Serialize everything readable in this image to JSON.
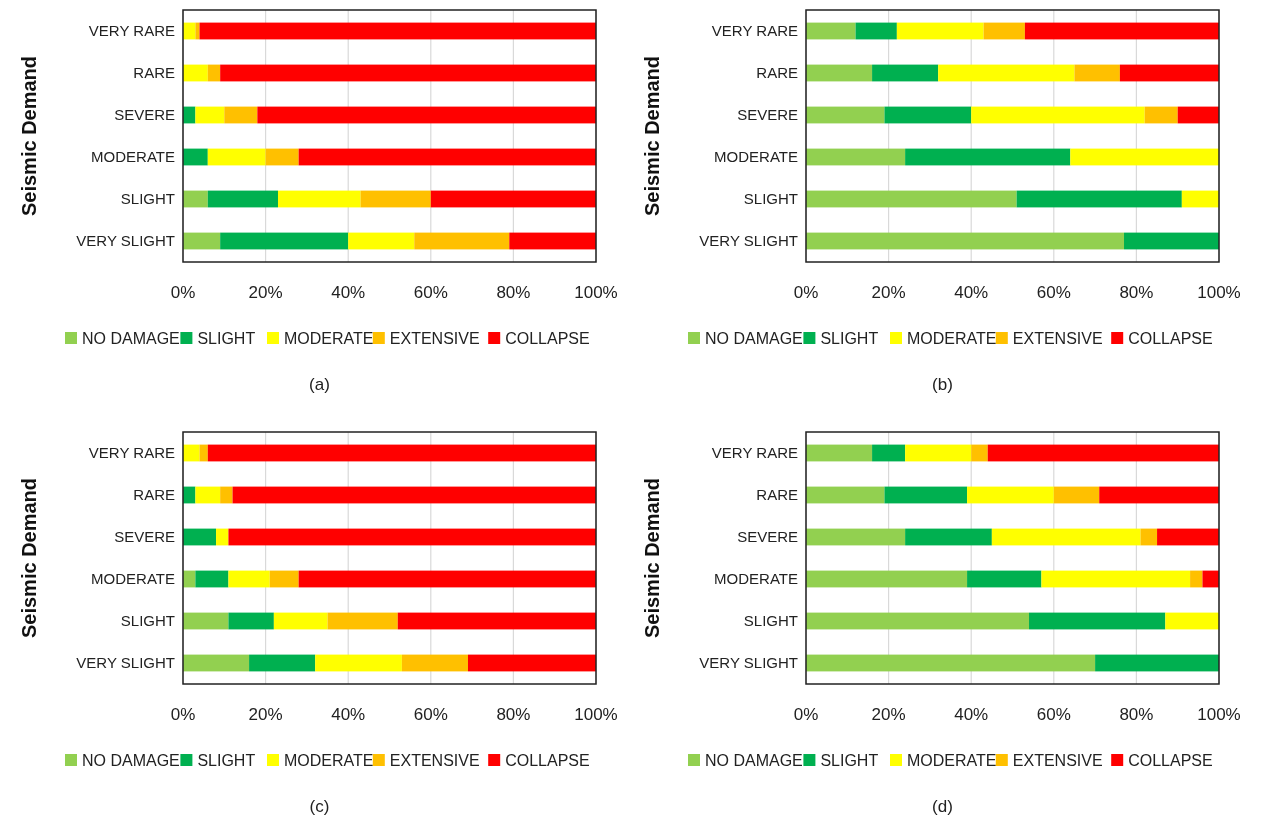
{
  "chart_data": [
    {
      "type": "bar",
      "orientation": "horizontal",
      "stacked": true,
      "ylabel": "Seismic Demand",
      "categories": [
        "VERY RARE",
        "RARE",
        "SEVERE",
        "MODERATE",
        "SLIGHT",
        "VERY SLIGHT"
      ],
      "xlim": [
        0,
        100
      ],
      "xticks": [
        {
          "value": 0,
          "label": "0%"
        },
        {
          "value": 20,
          "label": "20%"
        },
        {
          "value": 40,
          "label": "40%"
        },
        {
          "value": 60,
          "label": "60%"
        },
        {
          "value": 80,
          "label": "80%"
        },
        {
          "value": 100,
          "label": "100%"
        }
      ],
      "grid": "x",
      "legend": "bottom",
      "annotations": [
        "(a)"
      ],
      "series": [
        {
          "name": "NO DAMAGE",
          "color": "#92d050",
          "values": [
            0,
            0,
            0,
            0,
            6,
            9
          ]
        },
        {
          "name": "SLIGHT",
          "color": "#00b050",
          "values": [
            0,
            0,
            3,
            6,
            17,
            31
          ]
        },
        {
          "name": "MODERATE",
          "color": "#ffff00",
          "values": [
            3,
            6,
            7,
            14,
            20,
            16
          ]
        },
        {
          "name": "EXTENSIVE",
          "color": "#ffc000",
          "values": [
            1,
            3,
            8,
            8,
            17,
            23
          ]
        },
        {
          "name": "COLLAPSE",
          "color": "#ff0000",
          "values": [
            96,
            91,
            82,
            72,
            40,
            21
          ]
        }
      ]
    },
    {
      "type": "bar",
      "orientation": "horizontal",
      "stacked": true,
      "ylabel": "Seismic Demand",
      "categories": [
        "VERY RARE",
        "RARE",
        "SEVERE",
        "MODERATE",
        "SLIGHT",
        "VERY SLIGHT"
      ],
      "xlim": [
        0,
        100
      ],
      "xticks": [
        {
          "value": 0,
          "label": "0%"
        },
        {
          "value": 20,
          "label": "20%"
        },
        {
          "value": 40,
          "label": "40%"
        },
        {
          "value": 60,
          "label": "60%"
        },
        {
          "value": 80,
          "label": "80%"
        },
        {
          "value": 100,
          "label": "100%"
        }
      ],
      "grid": "x",
      "legend": "bottom",
      "annotations": [
        "(b)"
      ],
      "series": [
        {
          "name": "NO DAMAGE",
          "color": "#92d050",
          "values": [
            12,
            16,
            19,
            24,
            51,
            77
          ]
        },
        {
          "name": "SLIGHT",
          "color": "#00b050",
          "values": [
            10,
            16,
            21,
            40,
            40,
            23
          ]
        },
        {
          "name": "MODERATE",
          "color": "#ffff00",
          "values": [
            21,
            33,
            42,
            36,
            9,
            0
          ]
        },
        {
          "name": "EXTENSIVE",
          "color": "#ffc000",
          "values": [
            10,
            11,
            8,
            0,
            0,
            0
          ]
        },
        {
          "name": "COLLAPSE",
          "color": "#ff0000",
          "values": [
            47,
            24,
            10,
            0,
            0,
            0
          ]
        }
      ]
    },
    {
      "type": "bar",
      "orientation": "horizontal",
      "stacked": true,
      "ylabel": "Seismic Demand",
      "categories": [
        "VERY RARE",
        "RARE",
        "SEVERE",
        "MODERATE",
        "SLIGHT",
        "VERY SLIGHT"
      ],
      "xlim": [
        0,
        100
      ],
      "xticks": [
        {
          "value": 0,
          "label": "0%"
        },
        {
          "value": 20,
          "label": "20%"
        },
        {
          "value": 40,
          "label": "40%"
        },
        {
          "value": 60,
          "label": "60%"
        },
        {
          "value": 80,
          "label": "80%"
        },
        {
          "value": 100,
          "label": "100%"
        }
      ],
      "grid": "x",
      "legend": "bottom",
      "annotations": [
        "(c)"
      ],
      "series": [
        {
          "name": "NO DAMAGE",
          "color": "#92d050",
          "values": [
            0,
            0,
            0,
            3,
            11,
            16
          ]
        },
        {
          "name": "SLIGHT",
          "color": "#00b050",
          "values": [
            0,
            3,
            8,
            8,
            11,
            16
          ]
        },
        {
          "name": "MODERATE",
          "color": "#ffff00",
          "values": [
            4,
            6,
            3,
            10,
            13,
            21
          ]
        },
        {
          "name": "EXTENSIVE",
          "color": "#ffc000",
          "values": [
            2,
            3,
            0,
            7,
            17,
            16
          ]
        },
        {
          "name": "COLLAPSE",
          "color": "#ff0000",
          "values": [
            94,
            88,
            89,
            72,
            48,
            31
          ]
        }
      ]
    },
    {
      "type": "bar",
      "orientation": "horizontal",
      "stacked": true,
      "ylabel": "Seismic Demand",
      "categories": [
        "VERY RARE",
        "RARE",
        "SEVERE",
        "MODERATE",
        "SLIGHT",
        "VERY SLIGHT"
      ],
      "xlim": [
        0,
        100
      ],
      "xticks": [
        {
          "value": 0,
          "label": "0%"
        },
        {
          "value": 20,
          "label": "20%"
        },
        {
          "value": 40,
          "label": "40%"
        },
        {
          "value": 60,
          "label": "60%"
        },
        {
          "value": 80,
          "label": "80%"
        },
        {
          "value": 100,
          "label": "100%"
        }
      ],
      "grid": "x",
      "legend": "bottom",
      "annotations": [
        "(d)"
      ],
      "series": [
        {
          "name": "NO DAMAGE",
          "color": "#92d050",
          "values": [
            16,
            19,
            24,
            39,
            54,
            70
          ]
        },
        {
          "name": "SLIGHT",
          "color": "#00b050",
          "values": [
            8,
            20,
            21,
            18,
            33,
            30
          ]
        },
        {
          "name": "MODERATE",
          "color": "#ffff00",
          "values": [
            16,
            21,
            36,
            36,
            13,
            0
          ]
        },
        {
          "name": "EXTENSIVE",
          "color": "#ffc000",
          "values": [
            4,
            11,
            4,
            3,
            0,
            0
          ]
        },
        {
          "name": "COLLAPSE",
          "color": "#ff0000",
          "values": [
            56,
            29,
            15,
            4,
            0,
            0
          ]
        }
      ]
    }
  ]
}
